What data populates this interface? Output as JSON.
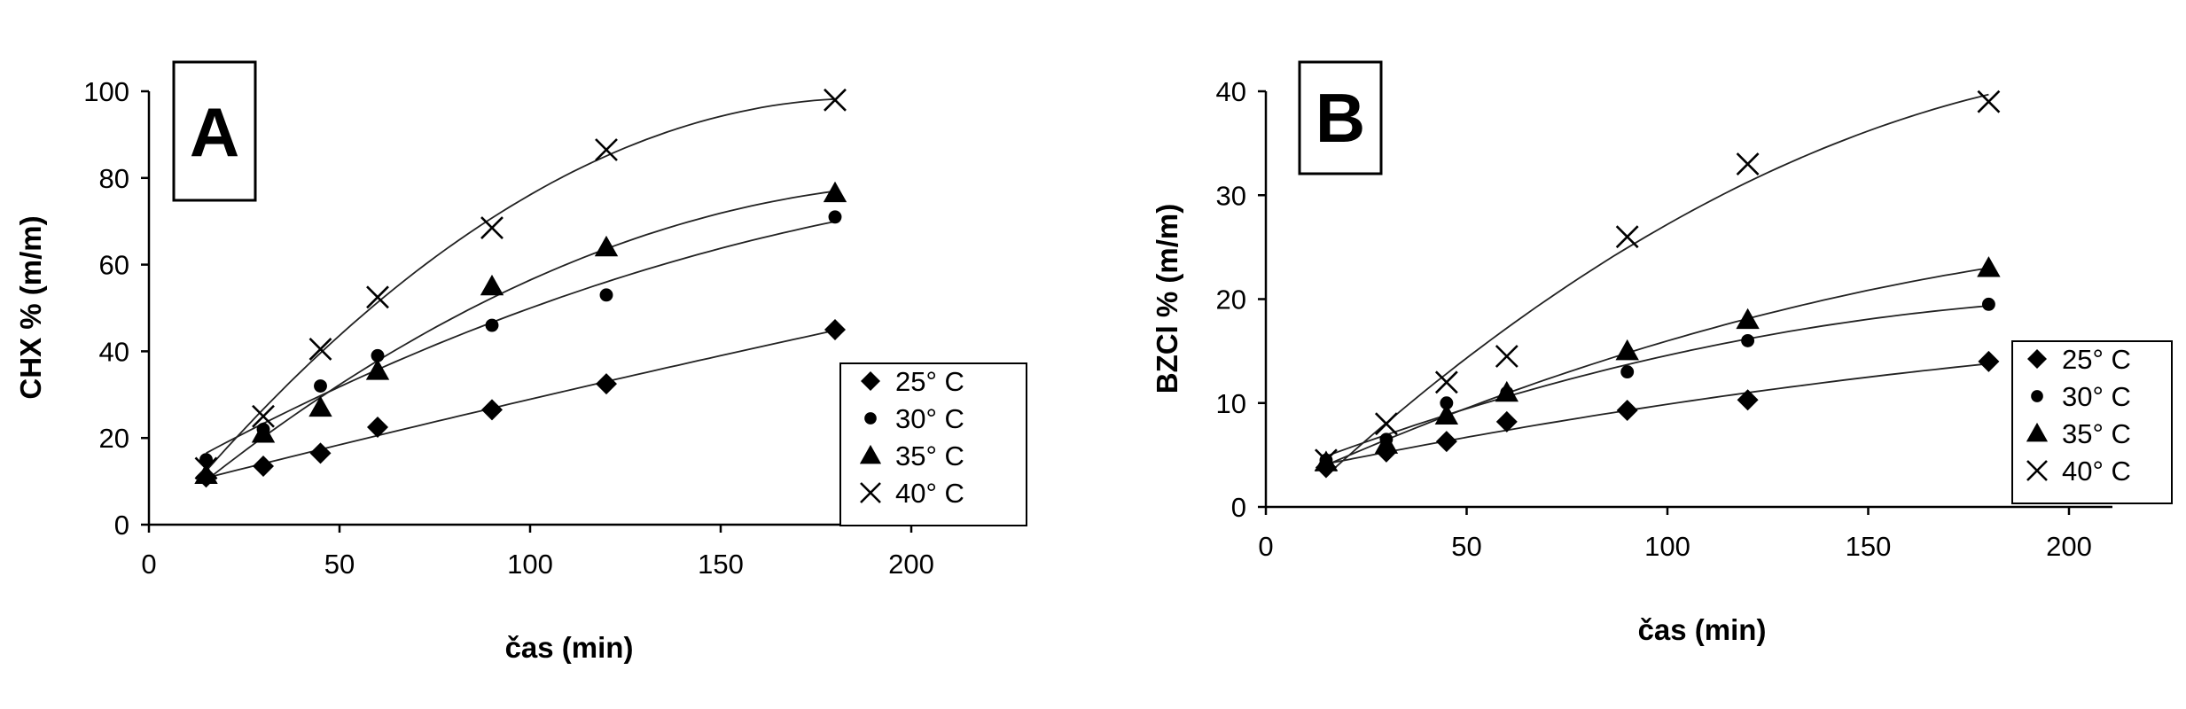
{
  "chart_data": [
    {
      "type": "scatter",
      "panel_label": "A",
      "xlabel": "čas (min)",
      "ylabel": "CHX % (m/m)",
      "xlim": [
        0,
        225
      ],
      "ylim": [
        0,
        100
      ],
      "xticks": [
        0,
        50,
        100,
        150,
        200
      ],
      "yticks": [
        0,
        20,
        40,
        60,
        80,
        100
      ],
      "x": [
        15,
        30,
        45,
        60,
        90,
        120,
        180
      ],
      "legend_position": "right",
      "trend_lines": true,
      "series": [
        {
          "name": "25° C",
          "marker": "diamond",
          "values": [
            11,
            13.5,
            16.5,
            22.5,
            26.5,
            32.5,
            45
          ]
        },
        {
          "name": "30° C",
          "marker": "circle",
          "values": [
            15,
            22,
            32,
            39,
            46,
            53,
            71
          ]
        },
        {
          "name": "35° C",
          "marker": "triangle",
          "values": [
            11.5,
            21,
            27,
            35.5,
            55,
            64,
            76.5
          ]
        },
        {
          "name": "40° C",
          "marker": "x",
          "values": [
            13,
            25,
            40.5,
            52.5,
            68.5,
            86.5,
            98
          ]
        }
      ]
    },
    {
      "type": "scatter",
      "panel_label": "B",
      "xlabel": "čas (min)",
      "ylabel": "BZCl % (m/m)",
      "xlim": [
        0,
        225
      ],
      "ylim": [
        0,
        40
      ],
      "xticks": [
        0,
        50,
        100,
        150,
        200
      ],
      "yticks": [
        0,
        10,
        20,
        30,
        40
      ],
      "x": [
        15,
        30,
        45,
        60,
        90,
        120,
        180
      ],
      "legend_position": "right",
      "trend_lines": true,
      "series": [
        {
          "name": "25° C",
          "marker": "diamond",
          "values": [
            3.8,
            5.3,
            6.3,
            8.2,
            9.3,
            10.3,
            14
          ]
        },
        {
          "name": "30° C",
          "marker": "circle",
          "values": [
            4.5,
            6.5,
            10,
            11,
            13,
            16,
            19.5
          ]
        },
        {
          "name": "35° C",
          "marker": "triangle",
          "values": [
            4.3,
            6,
            8.8,
            11,
            15,
            18,
            23
          ]
        },
        {
          "name": "40° C",
          "marker": "x",
          "values": [
            4.5,
            8,
            12,
            14.5,
            26,
            33,
            39
          ]
        }
      ]
    }
  ]
}
